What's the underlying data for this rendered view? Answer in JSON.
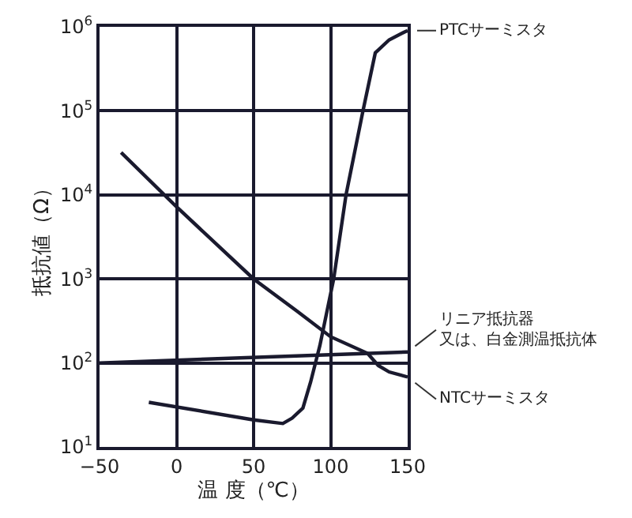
{
  "chart_data": {
    "type": "line",
    "xlabel": "温 度（℃）",
    "ylabel": "抵抗値（Ω）",
    "xlim": [
      -50,
      150
    ],
    "xticks": [
      {
        "value": -50,
        "label": "−50"
      },
      0,
      50,
      100,
      150
    ],
    "ylim": [
      10,
      1000000
    ],
    "yticks": [
      {
        "value": 10,
        "label": "10$^{1}$"
      },
      {
        "value": 100,
        "label": "10$^{2}$"
      },
      {
        "value": 1000,
        "label": "10$^{3}$"
      },
      {
        "value": 10000,
        "label": "10$^{4}$"
      },
      {
        "value": 100000,
        "label": "10$^{5}$"
      },
      {
        "value": 1000000,
        "label": "10$^{6}$"
      }
    ],
    "log": "y",
    "grid": true,
    "legend": false,
    "marker": "none",
    "line_style": "solid",
    "series": [
      {
        "name": "PTCサーミスタ",
        "color": "#1a1a2e",
        "x": [
          -18,
          50,
          69,
          75,
          82,
          87,
          93,
          102,
          110,
          121,
          129,
          138,
          148,
          150
        ],
        "values": [
          34,
          21,
          19,
          22,
          29,
          59,
          160,
          1000,
          10000,
          100000,
          490000,
          700000,
          870000,
          900000
        ]
      },
      {
        "name": "リニア抵抗器又は、白金測温抵抗体",
        "color": "#1a1a2e",
        "x": [
          -50,
          150
        ],
        "values": [
          100,
          135
        ]
      },
      {
        "name": "NTCサーミスタ",
        "color": "#1a1a2e",
        "x": [
          -36,
          0,
          50,
          78,
          100,
          124,
          131,
          138,
          150
        ],
        "values": [
          32000,
          7200,
          1000,
          415,
          205,
          130,
          93,
          78,
          68
        ]
      }
    ]
  }
}
